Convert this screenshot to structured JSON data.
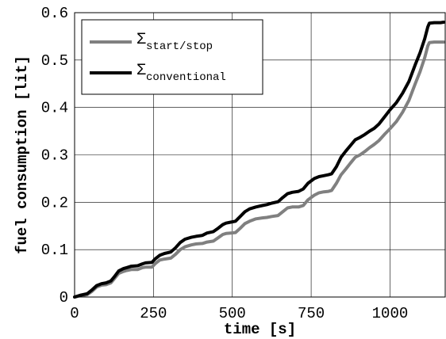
{
  "chart_data": {
    "type": "line",
    "title": "",
    "xlabel": "time [s]",
    "ylabel": "fuel consumption [lit]",
    "xlim": [
      0,
      1175
    ],
    "ylim": [
      0,
      0.6
    ],
    "xticks": [
      0,
      250,
      500,
      750,
      1000
    ],
    "yticks": [
      0,
      0.1,
      0.2,
      0.3,
      0.4,
      0.5,
      0.6
    ],
    "xtick_labels": [
      "0",
      "250",
      "500",
      "750",
      "1000"
    ],
    "ytick_labels": [
      "0",
      "0.1",
      "0.2",
      "0.3",
      "0.4",
      "0.5",
      "0.6"
    ],
    "grid": true,
    "legend_position": "top-left",
    "series": [
      {
        "name": "Σstart/stop",
        "legend_symbol": "Σ",
        "legend_subscript": "start/stop",
        "color": "#808080",
        "x": [
          0,
          20,
          40,
          55,
          70,
          85,
          100,
          115,
          125,
          140,
          155,
          165,
          180,
          200,
          215,
          225,
          245,
          255,
          270,
          285,
          305,
          320,
          335,
          350,
          370,
          385,
          405,
          420,
          440,
          455,
          470,
          480,
          495,
          510,
          525,
          540,
          555,
          575,
          595,
          610,
          625,
          645,
          660,
          675,
          690,
          710,
          725,
          740,
          760,
          775,
          790,
          805,
          815,
          830,
          845,
          860,
          875,
          890,
          905,
          920,
          935,
          950,
          965,
          985,
          1000,
          1020,
          1040,
          1060,
          1080,
          1095,
          1110,
          1120,
          1125,
          1140,
          1160,
          1170
        ],
        "y": [
          0,
          0.003,
          0.005,
          0.012,
          0.021,
          0.025,
          0.026,
          0.03,
          0.038,
          0.05,
          0.054,
          0.056,
          0.058,
          0.058,
          0.062,
          0.063,
          0.063,
          0.07,
          0.078,
          0.08,
          0.082,
          0.09,
          0.1,
          0.106,
          0.11,
          0.112,
          0.113,
          0.116,
          0.118,
          0.125,
          0.132,
          0.134,
          0.135,
          0.136,
          0.145,
          0.155,
          0.16,
          0.165,
          0.167,
          0.168,
          0.17,
          0.172,
          0.18,
          0.188,
          0.19,
          0.19,
          0.193,
          0.205,
          0.215,
          0.22,
          0.222,
          0.223,
          0.225,
          0.24,
          0.258,
          0.27,
          0.283,
          0.295,
          0.3,
          0.307,
          0.315,
          0.322,
          0.33,
          0.345,
          0.355,
          0.37,
          0.39,
          0.415,
          0.45,
          0.475,
          0.505,
          0.53,
          0.537,
          0.538,
          0.538,
          0.538
        ]
      },
      {
        "name": "Σconventional",
        "legend_symbol": "Σ",
        "legend_subscript": "conventional",
        "color": "#000000",
        "x": [
          0,
          20,
          40,
          55,
          70,
          85,
          100,
          115,
          125,
          140,
          155,
          165,
          180,
          200,
          215,
          225,
          245,
          255,
          270,
          285,
          305,
          320,
          335,
          350,
          370,
          385,
          405,
          420,
          440,
          455,
          470,
          480,
          495,
          510,
          525,
          540,
          555,
          575,
          595,
          610,
          625,
          645,
          660,
          675,
          690,
          710,
          725,
          740,
          760,
          775,
          790,
          805,
          815,
          830,
          845,
          860,
          875,
          890,
          905,
          920,
          935,
          950,
          965,
          985,
          1000,
          1020,
          1040,
          1060,
          1080,
          1095,
          1110,
          1120,
          1125,
          1140,
          1160,
          1170
        ],
        "y": [
          0,
          0.004,
          0.007,
          0.015,
          0.024,
          0.028,
          0.03,
          0.034,
          0.042,
          0.055,
          0.06,
          0.062,
          0.065,
          0.066,
          0.07,
          0.072,
          0.073,
          0.08,
          0.088,
          0.092,
          0.095,
          0.104,
          0.115,
          0.122,
          0.126,
          0.128,
          0.13,
          0.135,
          0.138,
          0.145,
          0.153,
          0.156,
          0.158,
          0.16,
          0.17,
          0.18,
          0.186,
          0.19,
          0.193,
          0.195,
          0.198,
          0.201,
          0.21,
          0.218,
          0.221,
          0.223,
          0.228,
          0.24,
          0.25,
          0.254,
          0.256,
          0.258,
          0.26,
          0.275,
          0.295,
          0.308,
          0.32,
          0.332,
          0.337,
          0.343,
          0.35,
          0.356,
          0.365,
          0.382,
          0.395,
          0.41,
          0.43,
          0.455,
          0.49,
          0.515,
          0.545,
          0.57,
          0.578,
          0.579,
          0.579,
          0.58
        ]
      }
    ]
  }
}
